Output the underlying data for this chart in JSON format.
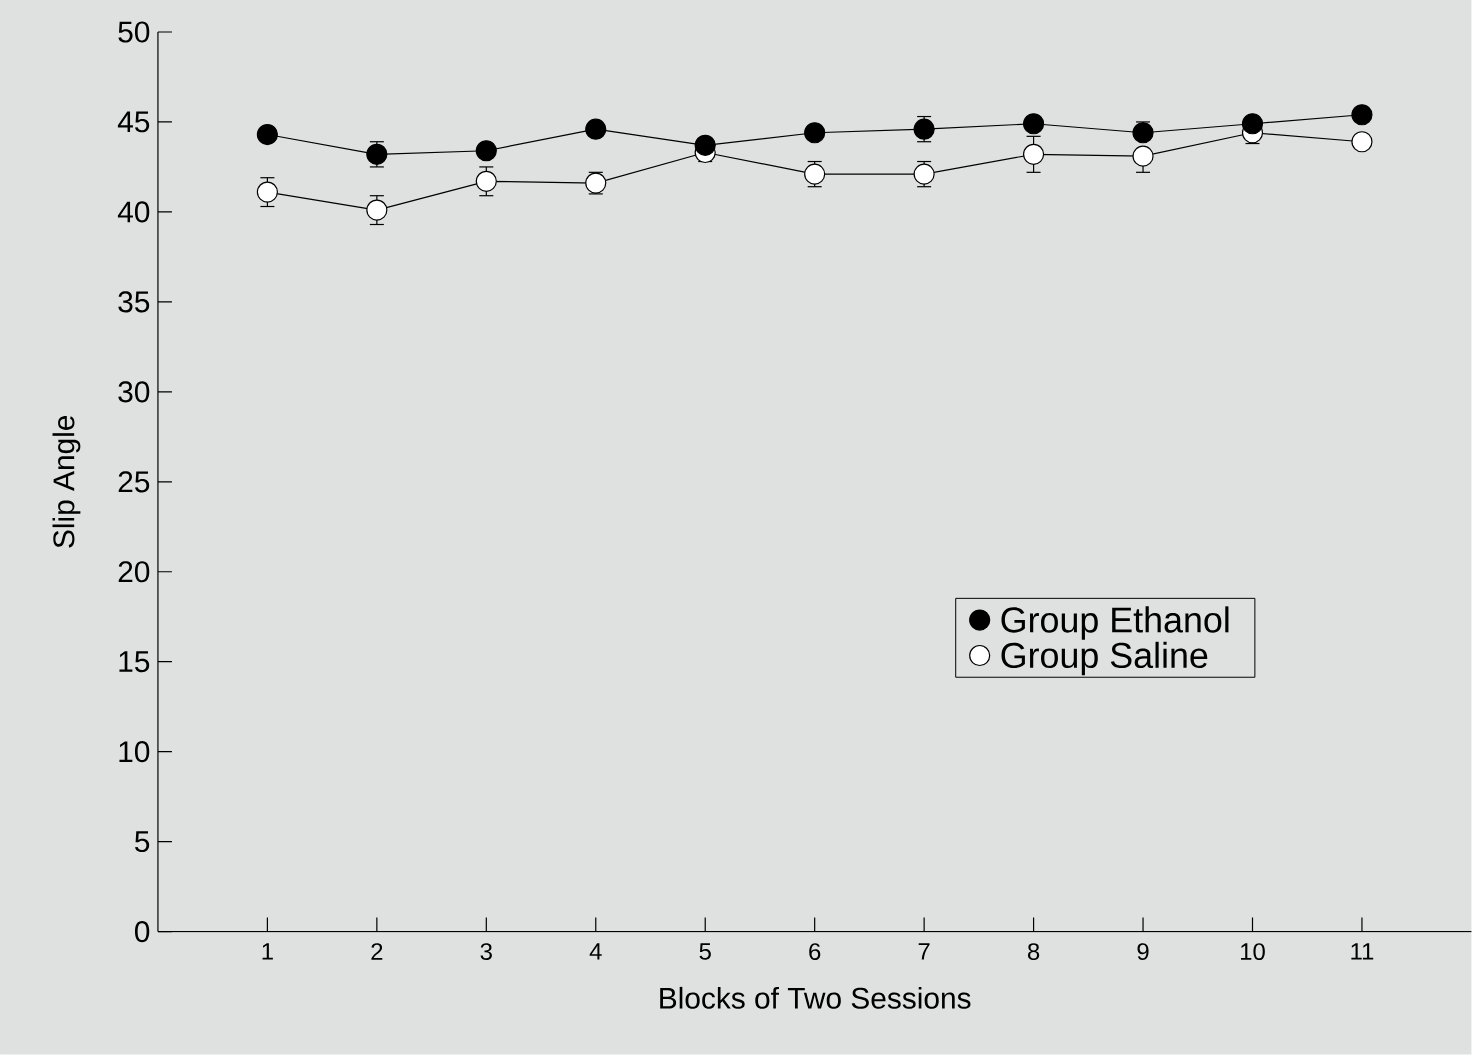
{
  "chart_data": {
    "type": "line",
    "xlabel": "Blocks of Two Sessions",
    "ylabel": "Slip Angle",
    "x": [
      1,
      2,
      3,
      4,
      5,
      6,
      7,
      8,
      9,
      10,
      11
    ],
    "xlim": [
      0,
      12
    ],
    "xticks": [
      1,
      2,
      3,
      4,
      5,
      6,
      7,
      8,
      9,
      10,
      11
    ],
    "ylim": [
      0,
      50
    ],
    "yticks": [
      0,
      5,
      10,
      15,
      20,
      25,
      30,
      35,
      40,
      45,
      50
    ],
    "grid": false,
    "legend": "right",
    "marker": "circle",
    "line_style": "solid",
    "series": [
      {
        "name": "Group Ethanol",
        "color": "#000000",
        "values": [
          44.3,
          43.2,
          43.4,
          44.6,
          43.7,
          44.4,
          44.6,
          44.9,
          44.4,
          44.9,
          45.4
        ],
        "errors": [
          null,
          0.7,
          null,
          null,
          null,
          null,
          0.7,
          null,
          [
            44.4,
            45.0
          ],
          null,
          null
        ]
      },
      {
        "name": "Group Saline",
        "color": "#ffffff",
        "values": [
          41.1,
          40.1,
          41.7,
          41.6,
          43.3,
          42.1,
          42.1,
          43.2,
          43.1,
          44.4,
          43.9
        ],
        "errors": [
          0.8,
          0.8,
          0.8,
          0.6,
          0.5,
          0.7,
          0.7,
          1.0,
          [
            42.2,
            43.1
          ],
          0.6,
          null
        ]
      }
    ]
  }
}
